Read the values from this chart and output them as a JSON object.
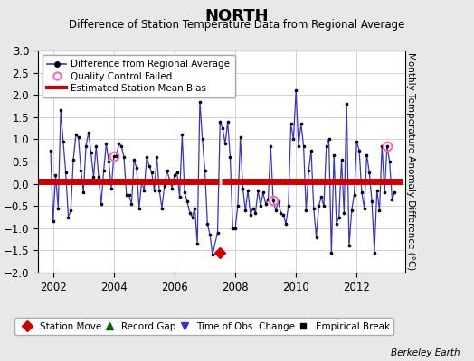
{
  "title": "NORTH",
  "subtitle": "Difference of Station Temperature Data from Regional Average",
  "ylabel": "Monthly Temperature Anomaly Difference (°C)",
  "xlabel_years": [
    2002,
    2004,
    2006,
    2008,
    2010,
    2012
  ],
  "ylim": [
    -2,
    3
  ],
  "yticks": [
    -2,
    -1.5,
    -1,
    -0.5,
    0,
    0.5,
    1,
    1.5,
    2,
    2.5,
    3
  ],
  "bias_value": 0.05,
  "bias_segment1_start": 2001.5,
  "bias_segment1_end": 2007.45,
  "bias_segment2_start": 2007.55,
  "bias_segment2_end": 2013.5,
  "station_move_x": 2007.5,
  "station_move_y": -1.55,
  "qc_fail_points": [
    [
      2004.0,
      0.62
    ],
    [
      2009.25,
      -0.38
    ],
    [
      2013.0,
      0.85
    ]
  ],
  "bg_color": "#e8e8e8",
  "plot_bg_color": "#ffffff",
  "line_color": "#3333cc",
  "dot_color": "#000000",
  "bias_color": "#cc0000",
  "grid_color": "#cccccc",
  "title_fontsize": 13,
  "subtitle_fontsize": 8.5,
  "tick_labelsize": 8.5,
  "data_x": [
    2001.917,
    2002.0,
    2002.083,
    2002.167,
    2002.25,
    2002.333,
    2002.417,
    2002.5,
    2002.583,
    2002.667,
    2002.75,
    2002.833,
    2002.917,
    2003.0,
    2003.083,
    2003.167,
    2003.25,
    2003.333,
    2003.417,
    2003.5,
    2003.583,
    2003.667,
    2003.75,
    2003.833,
    2003.917,
    2004.0,
    2004.083,
    2004.167,
    2004.25,
    2004.333,
    2004.417,
    2004.5,
    2004.583,
    2004.667,
    2004.75,
    2004.833,
    2004.917,
    2005.0,
    2005.083,
    2005.167,
    2005.25,
    2005.333,
    2005.417,
    2005.5,
    2005.583,
    2005.667,
    2005.75,
    2005.833,
    2005.917,
    2006.0,
    2006.083,
    2006.167,
    2006.25,
    2006.333,
    2006.417,
    2006.5,
    2006.583,
    2006.667,
    2006.75,
    2006.833,
    2006.917,
    2007.0,
    2007.083,
    2007.167,
    2007.25,
    2007.417,
    2007.5,
    2007.583,
    2007.667,
    2007.75,
    2007.833,
    2007.917,
    2008.0,
    2008.083,
    2008.167,
    2008.25,
    2008.333,
    2008.417,
    2008.5,
    2008.583,
    2008.667,
    2008.75,
    2008.833,
    2008.917,
    2009.0,
    2009.083,
    2009.167,
    2009.25,
    2009.333,
    2009.417,
    2009.5,
    2009.583,
    2009.667,
    2009.75,
    2009.833,
    2009.917,
    2010.0,
    2010.083,
    2010.167,
    2010.25,
    2010.333,
    2010.417,
    2010.5,
    2010.583,
    2010.667,
    2010.75,
    2010.833,
    2010.917,
    2011.0,
    2011.083,
    2011.167,
    2011.25,
    2011.333,
    2011.417,
    2011.5,
    2011.583,
    2011.667,
    2011.75,
    2011.833,
    2011.917,
    2012.0,
    2012.083,
    2012.167,
    2012.25,
    2012.333,
    2012.417,
    2012.5,
    2012.583,
    2012.667,
    2012.75,
    2012.833,
    2012.917,
    2013.0,
    2013.083,
    2013.167,
    2013.25
  ],
  "data_y": [
    0.75,
    -0.85,
    0.2,
    -0.55,
    1.65,
    0.95,
    0.25,
    -0.75,
    -0.6,
    0.55,
    1.1,
    1.05,
    0.3,
    -0.2,
    0.85,
    1.15,
    0.7,
    0.15,
    0.85,
    0.15,
    -0.45,
    0.3,
    0.9,
    0.5,
    -0.1,
    0.62,
    0.62,
    0.9,
    0.85,
    0.6,
    -0.25,
    -0.25,
    -0.45,
    0.55,
    0.35,
    -0.55,
    0.05,
    -0.15,
    0.6,
    0.4,
    0.25,
    -0.15,
    0.6,
    -0.15,
    -0.55,
    -0.05,
    0.3,
    0.1,
    -0.1,
    0.2,
    0.25,
    -0.3,
    1.1,
    -0.2,
    -0.4,
    -0.65,
    -0.75,
    -0.55,
    -1.35,
    1.85,
    1.0,
    0.3,
    -0.9,
    -1.15,
    -1.6,
    -1.1,
    1.4,
    1.25,
    0.9,
    1.4,
    0.6,
    -1.0,
    -1.0,
    -0.5,
    1.05,
    -0.1,
    -0.6,
    -0.15,
    -0.7,
    -0.55,
    -0.65,
    -0.15,
    -0.5,
    -0.2,
    -0.45,
    -0.35,
    0.85,
    -0.38,
    -0.6,
    -0.4,
    -0.65,
    -0.7,
    -0.9,
    -0.5,
    1.35,
    1.0,
    2.1,
    0.85,
    1.35,
    0.85,
    -0.6,
    0.3,
    0.75,
    -0.55,
    -1.2,
    -0.5,
    -0.3,
    -0.5,
    0.85,
    1.0,
    -1.55,
    0.65,
    -0.9,
    -0.75,
    0.55,
    -0.65,
    1.8,
    -1.4,
    -0.6,
    -0.25,
    0.95,
    0.75,
    -0.2,
    -0.55,
    0.65,
    0.25,
    -0.4,
    -1.55,
    -0.15,
    -0.6,
    0.85,
    -0.2,
    0.85,
    0.5,
    -0.35,
    -0.2
  ],
  "empirical_break_x": [
    2007.417
  ],
  "empirical_break_y": [
    -1.1
  ],
  "xlim": [
    2001.5,
    2013.6
  ]
}
